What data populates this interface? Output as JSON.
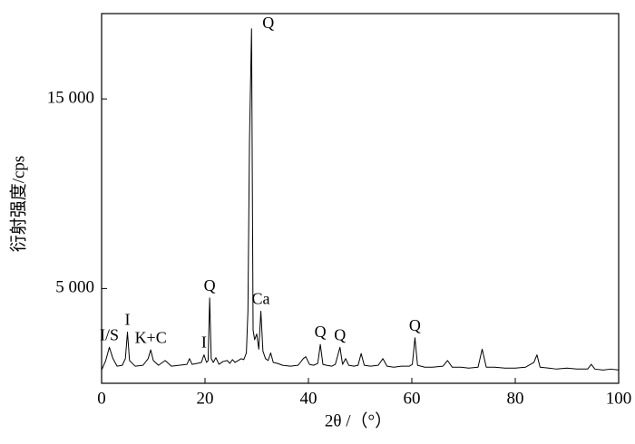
{
  "chart_data": {
    "type": "line",
    "x_label": "2θ /（°）",
    "y_label": "衍射强度/cps",
    "x": [
      0,
      0.8,
      1.5,
      2.2,
      3,
      4,
      4.6,
      5,
      5.4,
      6.5,
      8,
      9,
      9.5,
      10,
      11,
      12.3,
      13.5,
      15,
      16.5,
      17,
      17.5,
      18.5,
      19.3,
      19.8,
      20.3,
      20.6,
      20.9,
      21.2,
      21.6,
      22.1,
      22.7,
      23.5,
      24.3,
      24.8,
      25.3,
      25.8,
      26.4,
      27,
      27.5,
      28,
      28.3,
      28.6,
      29.0,
      29.3,
      29.6,
      30.0,
      30.4,
      30.8,
      31.2,
      31.7,
      32.2,
      32.7,
      33.2,
      34,
      35,
      36.5,
      38,
      39,
      39.5,
      40.2,
      41,
      41.8,
      42.3,
      42.8,
      43.5,
      44.5,
      45.2,
      46.1,
      46.6,
      47.2,
      47.8,
      48.8,
      49.6,
      50.2,
      50.8,
      52,
      53.5,
      54.4,
      55.2,
      56.5,
      58,
      59.5,
      60.1,
      60.6,
      61.1,
      62.5,
      64,
      66,
      66.9,
      67.8,
      69.5,
      71,
      72.8,
      73.6,
      74.4,
      76,
      78,
      80,
      82,
      83.6,
      84.2,
      84.8,
      86.5,
      88,
      90,
      92,
      94,
      94.7,
      95.4,
      97,
      98.5,
      100
    ],
    "values": [
      700,
      1200,
      1900,
      1300,
      900,
      950,
      1300,
      2700,
      1200,
      900,
      950,
      1300,
      1760,
      1200,
      950,
      1200,
      900,
      950,
      1000,
      1300,
      1000,
      1050,
      1100,
      1500,
      1100,
      1200,
      4500,
      1300,
      1100,
      1350,
      1000,
      1150,
      1200,
      1050,
      1250,
      1100,
      1200,
      1300,
      1250,
      1600,
      3800,
      12800,
      18700,
      2800,
      2300,
      2600,
      1800,
      3800,
      1700,
      1300,
      1200,
      1600,
      1100,
      1050,
      950,
      900,
      950,
      1300,
      1400,
      1000,
      950,
      1050,
      2050,
      1000,
      950,
      900,
      1000,
      1900,
      1000,
      1300,
      950,
      900,
      950,
      1570,
      950,
      900,
      950,
      1300,
      900,
      850,
      900,
      900,
      1000,
      2400,
      950,
      850,
      850,
      900,
      1200,
      850,
      850,
      800,
      850,
      1800,
      850,
      850,
      800,
      800,
      850,
      1100,
      1500,
      850,
      800,
      750,
      800,
      750,
      750,
      1000,
      750,
      700,
      750,
      700
    ],
    "color": "#000000",
    "xlim": [
      0,
      100
    ],
    "xticks": [
      0,
      20,
      40,
      60,
      80,
      100
    ],
    "ylim": [
      0,
      19500
    ],
    "yticks": [
      {
        "value": 5000,
        "label": "5 000"
      },
      {
        "value": 15000,
        "label": "15 000"
      }
    ],
    "annotations": [
      {
        "text": "I/S",
        "x": 1.5
      },
      {
        "text": "I",
        "x": 5
      },
      {
        "text": "K+C",
        "x": 9.5
      },
      {
        "text": "I",
        "x": 19.8
      },
      {
        "text": "Q",
        "x": 20.9
      },
      {
        "text": "Q",
        "x": 29.0
      },
      {
        "text": "Ca",
        "x": 30.8
      },
      {
        "text": "Q",
        "x": 42.3
      },
      {
        "text": "Q",
        "x": 46.1
      },
      {
        "text": "Q",
        "x": 60.6
      }
    ]
  }
}
